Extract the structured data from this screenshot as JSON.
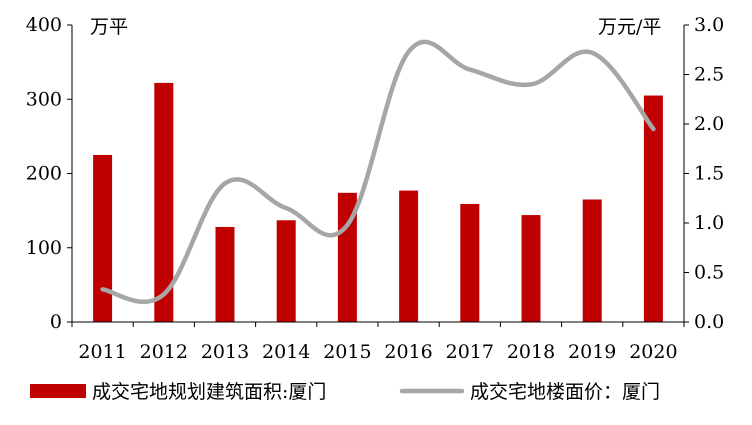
{
  "chart_data": {
    "type": "bar",
    "categories": [
      "2011",
      "2012",
      "2013",
      "2014",
      "2015",
      "2016",
      "2017",
      "2018",
      "2019",
      "2020"
    ],
    "series": [
      {
        "name": "成交宅地规划建筑面积:厦门",
        "type": "bar",
        "axis": "left",
        "color": "#C00000",
        "values": [
          225,
          322,
          128,
          137,
          174,
          177,
          159,
          144,
          165,
          305
        ]
      },
      {
        "name": "成交宅地楼面价：厦门",
        "type": "line",
        "axis": "right",
        "color": "#A6A6A6",
        "values": [
          0.33,
          0.28,
          1.4,
          1.15,
          0.98,
          2.73,
          2.55,
          2.4,
          2.72,
          1.95
        ]
      }
    ],
    "left_axis": {
      "unit": "万平",
      "ylim": [
        0,
        400
      ],
      "ticks": [
        "0",
        "100",
        "200",
        "300",
        "400"
      ]
    },
    "right_axis": {
      "unit": "万元/平",
      "ylim": [
        0,
        3.0
      ],
      "ticks": [
        "0.0",
        "0.5",
        "1.0",
        "1.5",
        "2.0",
        "2.5",
        "3.0"
      ]
    },
    "grid": false,
    "legend_position": "bottom"
  }
}
